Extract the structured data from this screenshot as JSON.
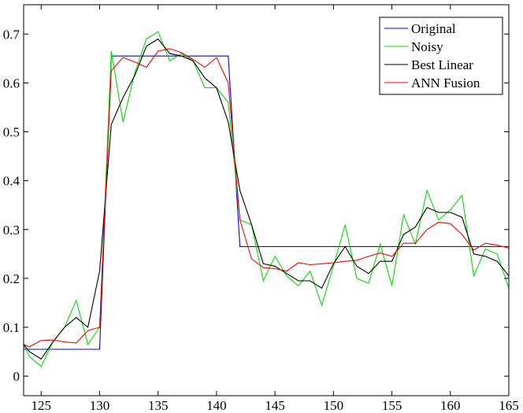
{
  "chart_data": {
    "type": "line",
    "title": "",
    "xlabel": "",
    "ylabel": "",
    "xlim": [
      123.5,
      165
    ],
    "ylim": [
      -0.04,
      0.76
    ],
    "xticks": [
      125,
      130,
      135,
      140,
      145,
      150,
      155,
      160,
      165
    ],
    "yticks": [
      0,
      0.1,
      0.2,
      0.3,
      0.4,
      0.5,
      0.6,
      0.7
    ],
    "xtick_labels": [
      "125",
      "130",
      "135",
      "140",
      "145",
      "150",
      "155",
      "160",
      "165"
    ],
    "ytick_labels": [
      "0",
      "0.1",
      "0.2",
      "0.3",
      "0.4",
      "0.5",
      "0.6",
      "0.7"
    ],
    "grid": false,
    "legend_position": "top-right",
    "series": [
      {
        "name": "Original",
        "color": "#0000ff",
        "x": [
          123.5,
          124,
          125,
          126,
          127,
          128,
          129,
          130,
          131,
          132,
          133,
          134,
          135,
          136,
          137,
          138,
          139,
          140,
          141,
          142,
          143,
          144,
          145,
          146,
          147,
          148,
          149,
          150,
          151,
          152,
          153,
          154,
          155,
          156,
          157,
          158,
          159,
          160,
          161,
          162,
          163,
          164,
          165
        ],
        "y": [
          0.055,
          0.055,
          0.055,
          0.055,
          0.055,
          0.055,
          0.055,
          0.055,
          0.655,
          0.655,
          0.655,
          0.655,
          0.655,
          0.655,
          0.655,
          0.655,
          0.655,
          0.655,
          0.655,
          0.265,
          0.265,
          0.265,
          0.265,
          0.265,
          0.265,
          0.265,
          0.265,
          0.265,
          0.265,
          0.265,
          0.265,
          0.265,
          0.265,
          0.265,
          0.265,
          0.265,
          0.265,
          0.265,
          0.265,
          0.265,
          0.265,
          0.265,
          0.265
        ]
      },
      {
        "name": "Noisy",
        "color": "#00e000",
        "x": [
          123.5,
          124,
          125,
          126,
          127,
          128,
          129,
          130,
          131,
          132,
          133,
          134,
          135,
          136,
          137,
          138,
          139,
          140,
          141,
          142,
          143,
          144,
          145,
          146,
          147,
          148,
          149,
          150,
          151,
          152,
          153,
          154,
          155,
          156,
          157,
          158,
          159,
          160,
          161,
          162,
          163,
          164,
          165
        ],
        "y": [
          0.065,
          0.04,
          0.02,
          0.07,
          0.1,
          0.155,
          0.065,
          0.1,
          0.665,
          0.52,
          0.62,
          0.69,
          0.705,
          0.645,
          0.66,
          0.645,
          0.59,
          0.59,
          0.56,
          0.32,
          0.31,
          0.195,
          0.245,
          0.205,
          0.185,
          0.215,
          0.145,
          0.225,
          0.31,
          0.2,
          0.19,
          0.27,
          0.185,
          0.33,
          0.27,
          0.38,
          0.32,
          0.34,
          0.37,
          0.205,
          0.26,
          0.25,
          0.18
        ]
      },
      {
        "name": "Best Linear",
        "color": "#000000",
        "x": [
          123.5,
          124,
          125,
          126,
          127,
          128,
          129,
          130,
          131,
          132,
          133,
          134,
          135,
          136,
          137,
          138,
          139,
          140,
          141,
          142,
          143,
          144,
          145,
          146,
          147,
          148,
          149,
          150,
          151,
          152,
          153,
          154,
          155,
          156,
          157,
          158,
          159,
          160,
          161,
          162,
          163,
          164,
          165
        ],
        "y": [
          0.065,
          0.05,
          0.035,
          0.07,
          0.1,
          0.12,
          0.1,
          0.215,
          0.515,
          0.57,
          0.615,
          0.675,
          0.69,
          0.66,
          0.655,
          0.645,
          0.61,
          0.59,
          0.52,
          0.38,
          0.31,
          0.23,
          0.225,
          0.21,
          0.195,
          0.195,
          0.18,
          0.23,
          0.265,
          0.225,
          0.21,
          0.235,
          0.235,
          0.29,
          0.305,
          0.345,
          0.335,
          0.335,
          0.325,
          0.25,
          0.245,
          0.235,
          0.205
        ]
      },
      {
        "name": "ANN Fusion",
        "color": "#ff0000",
        "x": [
          123.5,
          124,
          125,
          126,
          127,
          128,
          129,
          130,
          131,
          132,
          133,
          134,
          135,
          136,
          137,
          138,
          139,
          140,
          141,
          142,
          143,
          144,
          145,
          146,
          147,
          148,
          149,
          150,
          151,
          152,
          153,
          154,
          155,
          156,
          157,
          158,
          159,
          160,
          161,
          162,
          163,
          164,
          165
        ],
        "y": [
          0.065,
          0.06,
          0.073,
          0.074,
          0.07,
          0.068,
          0.093,
          0.1,
          0.625,
          0.652,
          0.643,
          0.632,
          0.665,
          0.67,
          0.662,
          0.648,
          0.632,
          0.652,
          0.6,
          0.32,
          0.24,
          0.222,
          0.22,
          0.215,
          0.232,
          0.228,
          0.23,
          0.232,
          0.235,
          0.237,
          0.245,
          0.252,
          0.245,
          0.272,
          0.272,
          0.3,
          0.315,
          0.312,
          0.29,
          0.258,
          0.272,
          0.268,
          0.262
        ]
      }
    ]
  }
}
